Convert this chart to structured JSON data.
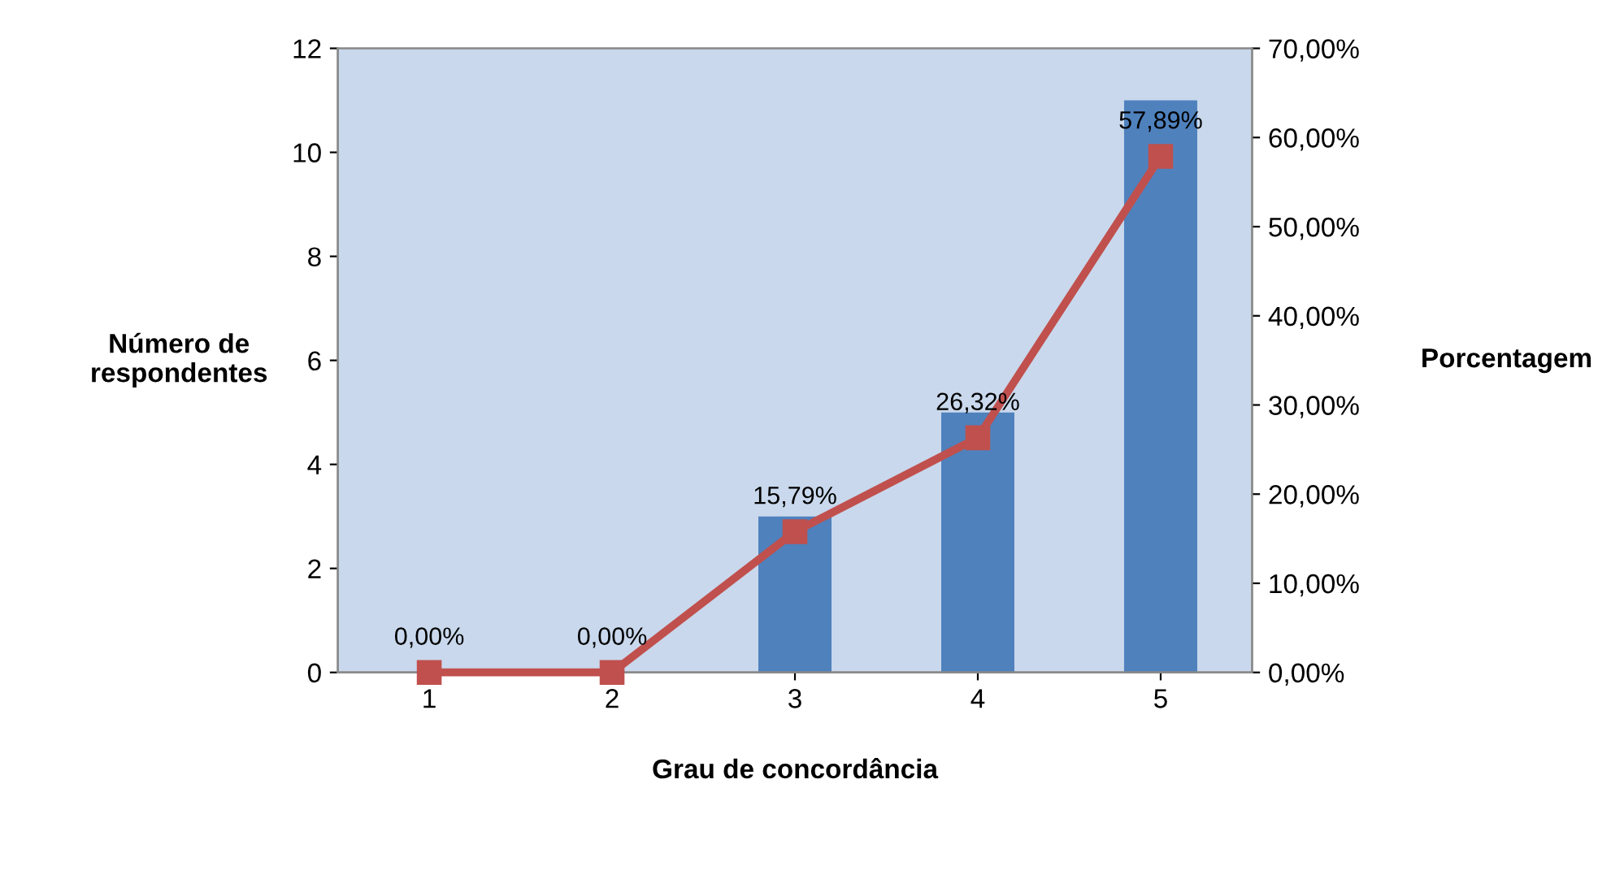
{
  "chart_data": {
    "type": "bar",
    "xlabel": "Grau de concordância",
    "ylabel": "Número de\nrespondentes",
    "y2label": "Porcentagem",
    "categories": [
      "1",
      "2",
      "3",
      "4",
      "5"
    ],
    "series": [
      {
        "color": "#4f81bd",
        "values": [
          0,
          0,
          3,
          5,
          11
        ]
      },
      {
        "type": "line",
        "axis": "y2",
        "color": "#c0504d",
        "marker": "square",
        "values": [
          0,
          0,
          15.79,
          26.32,
          57.89
        ],
        "value_labels": [
          "0,00%",
          "0,00%",
          "15,79%",
          "26,32%",
          "57,89%"
        ]
      }
    ],
    "ylim": [
      0,
      12
    ],
    "yticks": [
      0,
      2,
      4,
      6,
      8,
      10,
      12
    ],
    "y2lim": [
      0,
      70
    ],
    "y2ticks": [
      {
        "value": 0,
        "label": "0,00%"
      },
      {
        "value": 10,
        "label": "10,00%"
      },
      {
        "value": 20,
        "label": "20,00%"
      },
      {
        "value": 30,
        "label": "30,00%"
      },
      {
        "value": 40,
        "label": "40,00%"
      },
      {
        "value": 50,
        "label": "50,00%"
      },
      {
        "value": 60,
        "label": "60,00%"
      },
      {
        "value": 70,
        "label": "70,00%"
      }
    ],
    "grid": false,
    "legend": false
  }
}
